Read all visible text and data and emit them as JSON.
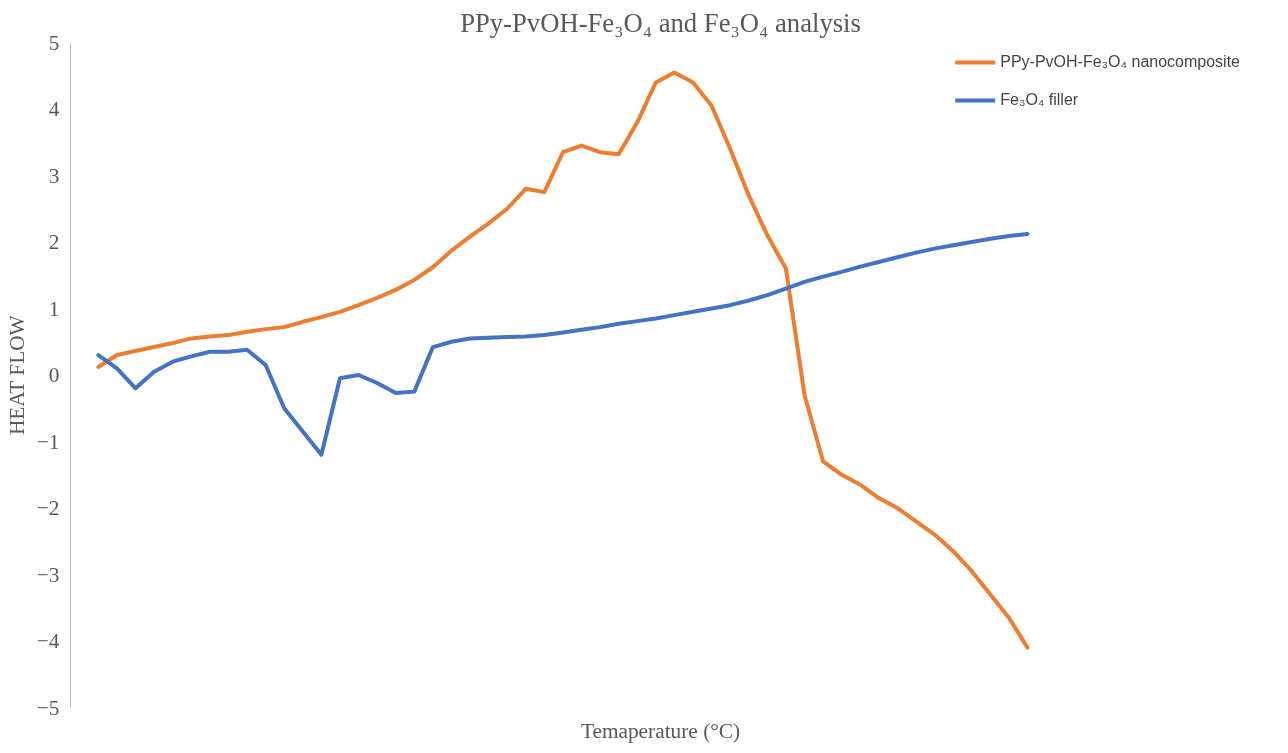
{
  "chart_data": {
    "type": "line",
    "title": "PPy-PvOH-Fe₃O₄ and Fe₃O₄ analysis",
    "xlabel": "Temaperature (°C)",
    "ylabel": "HEAT FLOW",
    "categories": [
      null,
      null,
      null,
      null,
      null,
      null,
      null,
      null,
      null,
      null,
      null,
      null,
      null,
      null,
      null,
      null,
      null,
      null,
      null,
      null,
      null,
      null,
      null,
      null,
      null,
      null,
      null,
      null,
      null,
      null,
      null,
      null,
      null,
      null,
      null,
      null,
      null,
      null,
      null,
      null,
      null,
      null,
      null,
      null,
      null,
      null,
      null,
      null,
      null,
      null,
      null
    ],
    "ylim": [
      -5,
      5
    ],
    "yticks": [
      -5,
      -4,
      -3,
      -2,
      -1,
      0,
      1,
      2,
      3,
      4,
      5
    ],
    "tick_labels": "y",
    "legend": "top right",
    "grid": false,
    "marker": "none",
    "line_style": "solid",
    "series": [
      {
        "name": "PPy-PvOH-Fe₃O₄ nanocomposite",
        "color": "#ed7d31",
        "values": [
          0.12,
          0.3,
          0.36,
          0.42,
          0.48,
          0.55,
          0.58,
          0.6,
          0.65,
          0.69,
          0.72,
          0.8,
          0.87,
          0.95,
          1.05,
          1.16,
          1.28,
          1.43,
          1.62,
          1.87,
          2.08,
          2.28,
          2.5,
          2.8,
          2.75,
          3.35,
          3.45,
          3.35,
          3.32,
          3.8,
          4.4,
          4.55,
          4.4,
          4.05,
          3.4,
          2.7,
          2.1,
          1.6,
          -0.3,
          -1.3,
          -1.5,
          -1.65,
          -1.85,
          -2.0,
          -2.2,
          -2.4,
          -2.65,
          -2.95,
          -3.3,
          -3.65,
          -4.1
        ]
      },
      {
        "name": "Fe₃O₄ filler",
        "color": "#4472c4",
        "values": [
          0.3,
          0.1,
          -0.2,
          0.05,
          0.2,
          0.28,
          0.35,
          0.35,
          0.38,
          0.15,
          -0.5,
          -0.85,
          -1.2,
          -0.05,
          0.0,
          -0.12,
          -0.27,
          -0.25,
          0.42,
          0.5,
          0.55,
          0.56,
          0.57,
          0.58,
          0.6,
          0.64,
          0.68,
          0.72,
          0.77,
          0.81,
          0.85,
          0.9,
          0.95,
          1.0,
          1.05,
          1.12,
          1.2,
          1.3,
          1.4,
          1.48,
          1.55,
          1.63,
          1.7,
          1.77,
          1.84,
          1.9,
          1.95,
          2.0,
          2.05,
          2.09,
          2.12
        ]
      }
    ]
  }
}
